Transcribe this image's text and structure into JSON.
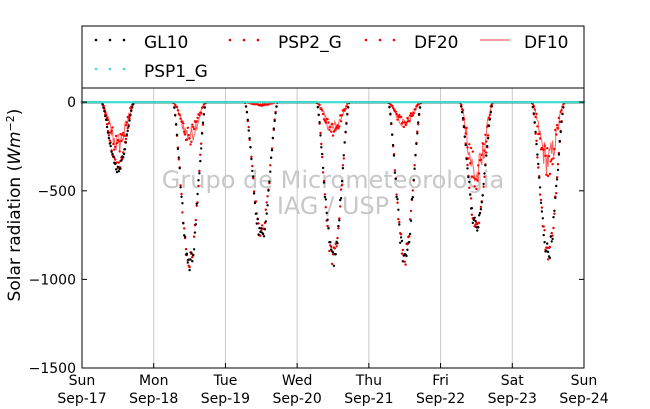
{
  "chart_data": {
    "type": "scatter",
    "ylabel": "Solar radiation",
    "ylabel_unit_base": "Wm",
    "ylabel_unit_exp": "−2",
    "ylim": [
      -1500,
      80
    ],
    "yticks": [
      0,
      -500,
      -1000,
      -1500
    ],
    "ytick_labels": [
      "0",
      "−500",
      "−1000",
      "−1500"
    ],
    "xlim_days": [
      0,
      7
    ],
    "x_day_labels": [
      {
        "day": 0,
        "weekday": "Sun",
        "date": "Sep-17"
      },
      {
        "day": 1,
        "weekday": "Mon",
        "date": "Sep-18"
      },
      {
        "day": 2,
        "weekday": "Tue",
        "date": "Sep-19"
      },
      {
        "day": 3,
        "weekday": "Wed",
        "date": "Sep-20"
      },
      {
        "day": 4,
        "weekday": "Thu",
        "date": "Sep-21"
      },
      {
        "day": 5,
        "weekday": "Fri",
        "date": "Sep-22"
      },
      {
        "day": 6,
        "weekday": "Sat",
        "date": "Sep-23"
      },
      {
        "day": 7,
        "weekday": "Sun",
        "date": "Sep-24"
      }
    ],
    "grid": "vertical",
    "legend_position": "top",
    "watermark": [
      "Grupo de Micrometeorologia",
      "IAG / USP"
    ],
    "series": [
      {
        "name": "GL10",
        "style": "dotted",
        "color": "#000000",
        "daily_min": [
          -400,
          -970,
          -800,
          -935,
          -930,
          -750,
          -900
        ]
      },
      {
        "name": "PSP2_G",
        "style": "dotted",
        "color": "#e00000",
        "daily_min": [
          -380,
          -960,
          -790,
          -930,
          -925,
          -740,
          -890
        ]
      },
      {
        "name": "DF20",
        "style": "dotted",
        "color": "#ff0000",
        "daily_min": [
          -300,
          -240,
          -20,
          -190,
          -150,
          -540,
          -420
        ]
      },
      {
        "name": "DF10",
        "style": "line",
        "color": "#ff6060",
        "daily_min": [
          -300,
          -240,
          -20,
          -190,
          -150,
          -540,
          -420
        ]
      },
      {
        "name": "PSP1_G",
        "style": "dotted",
        "color": "#40e0d0",
        "daily_min": [
          0,
          0,
          0,
          0,
          0,
          0,
          0
        ]
      }
    ]
  }
}
